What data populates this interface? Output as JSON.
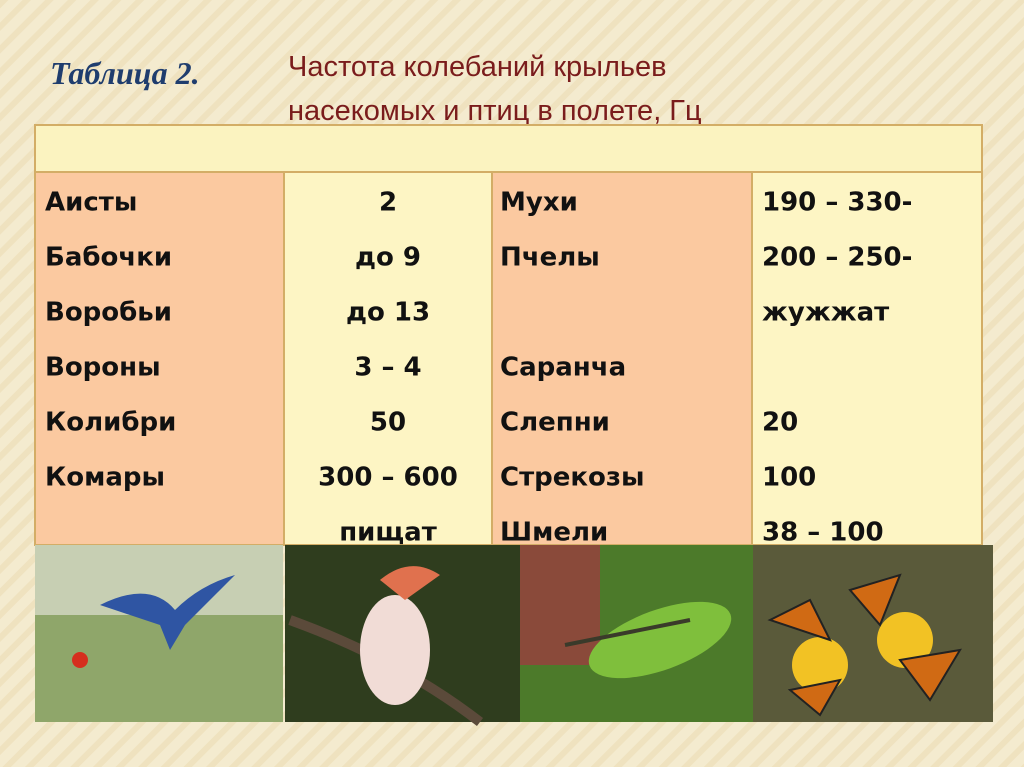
{
  "header": {
    "label": "Таблица 2.",
    "title": [
      "Частота колебаний крыльев",
      "насекомых и птиц в полете, Гц"
    ]
  },
  "table": {
    "rows": [
      [
        "Аисты",
        "2",
        "Мухи",
        "190 – 330-"
      ],
      [
        "Бабочки",
        "до 9",
        "Пчелы",
        "200 – 250-"
      ],
      [
        "Воробьи",
        "до 13",
        null,
        "жужжат"
      ],
      [
        "Вороны",
        "3 – 4",
        "Саранча",
        null
      ],
      [
        "Колибри",
        "50",
        "Слепни",
        "20"
      ],
      [
        "Комары",
        "300 – 600",
        "Стрекозы",
        "100"
      ],
      [
        null,
        "пищат",
        "Шмели",
        "38 – 100"
      ]
    ]
  }
}
